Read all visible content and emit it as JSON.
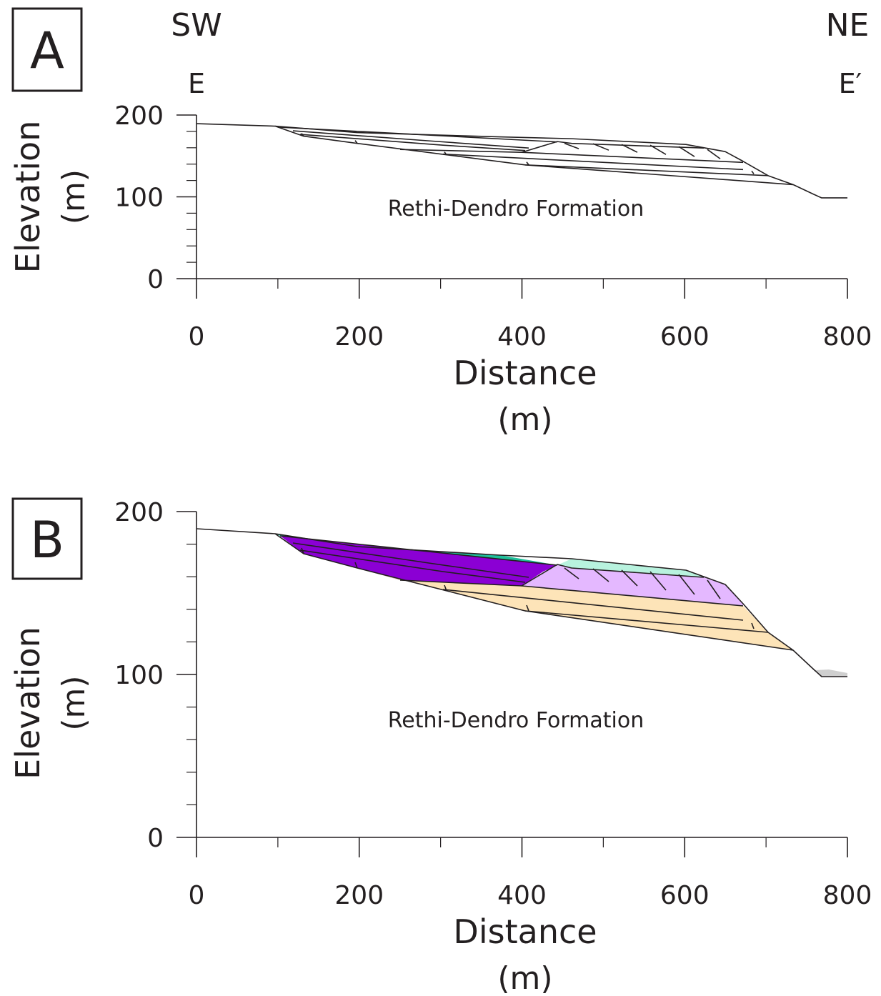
{
  "panels": [
    {
      "label": "A",
      "direction_left": "SW",
      "direction_right": "NE",
      "section_left": "E",
      "section_right": "E′",
      "formation": "Rethi-Dendro Formation",
      "y_label": [
        "Elevation",
        "(m)"
      ],
      "x_label": [
        "Distance",
        "(m)"
      ],
      "xticks": [
        0,
        200,
        400,
        600,
        800
      ],
      "yticks": [
        0,
        100,
        200
      ]
    },
    {
      "label": "B",
      "formation": "Rethi-Dendro Formation",
      "y_label": [
        "Elevation",
        "(m)"
      ],
      "x_label": [
        "Distance",
        "(m)"
      ],
      "xticks": [
        0,
        200,
        400,
        600,
        800
      ],
      "yticks": [
        0,
        100,
        200
      ]
    }
  ]
}
